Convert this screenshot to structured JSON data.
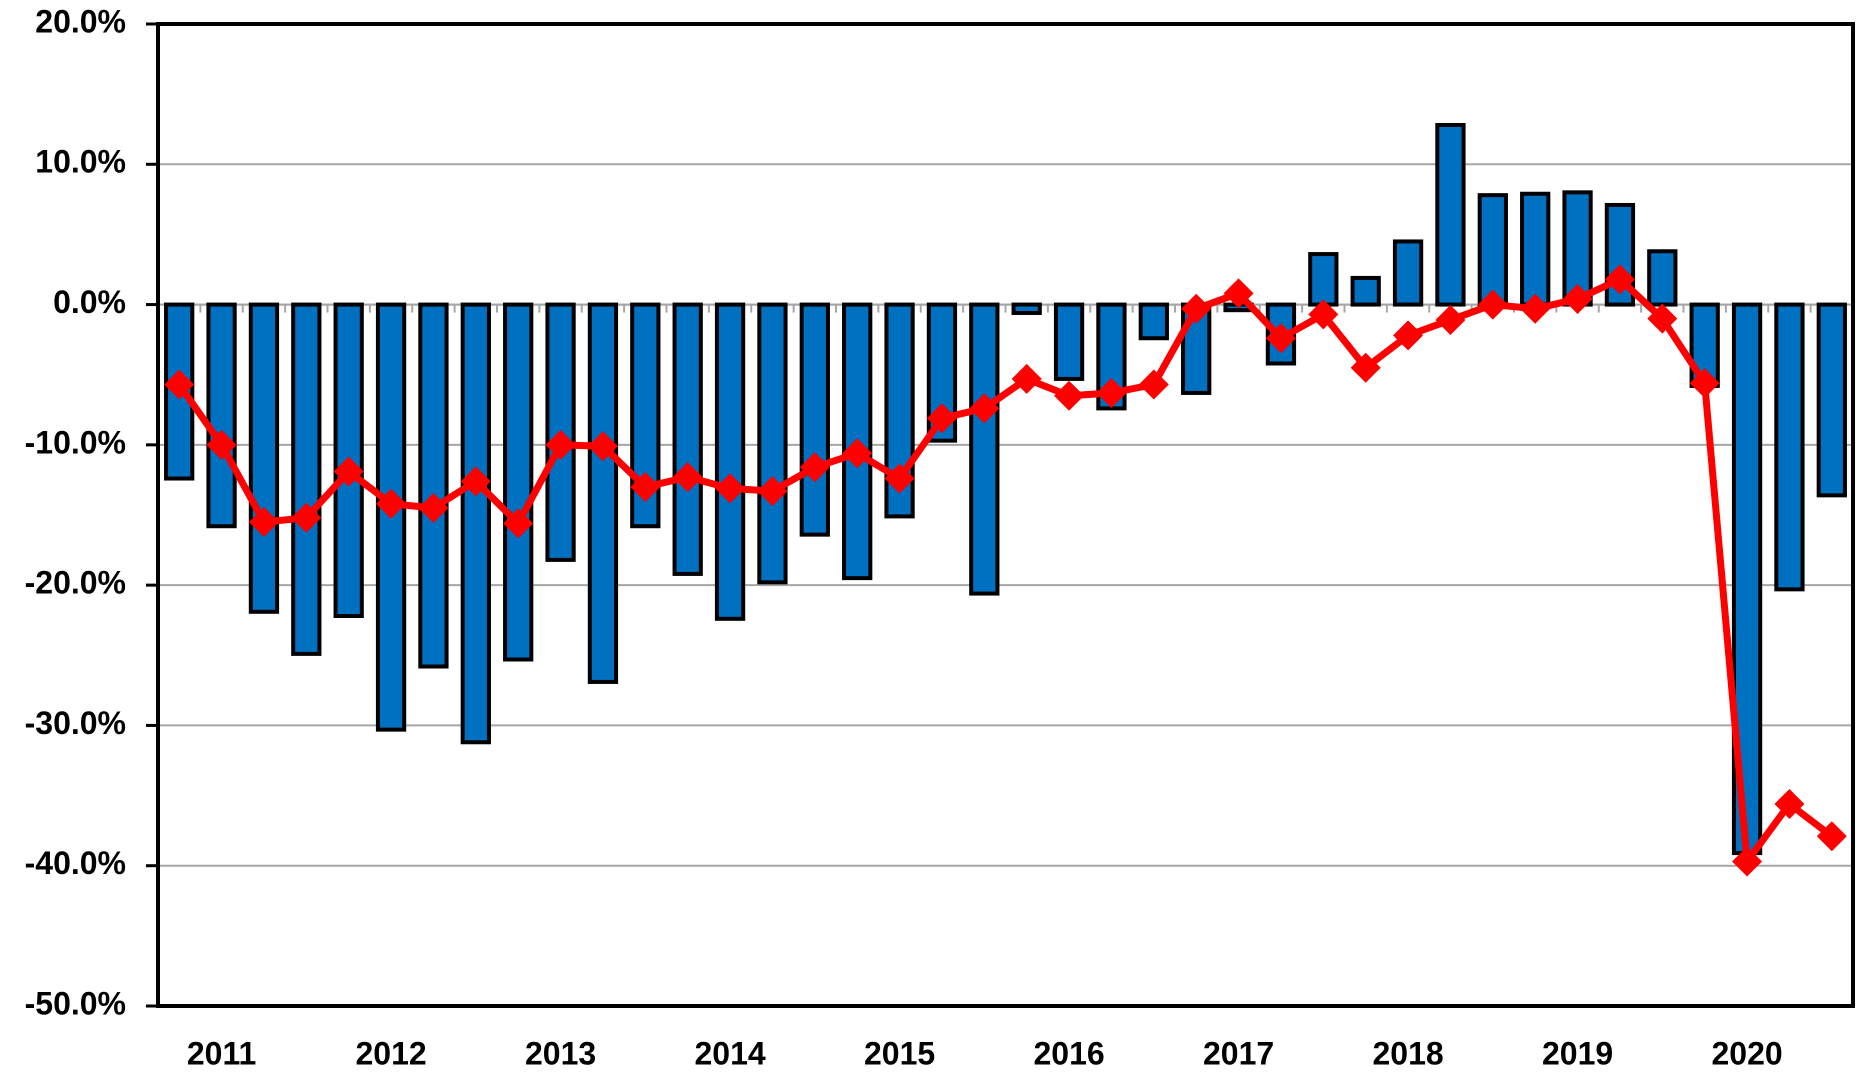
{
  "chart_data": {
    "type": "bar",
    "categories": [
      null,
      "2011",
      null,
      null,
      null,
      "2012",
      null,
      null,
      null,
      "2013",
      null,
      null,
      null,
      "2014",
      null,
      null,
      null,
      "2015",
      null,
      null,
      null,
      "2016",
      null,
      null,
      null,
      "2017",
      null,
      null,
      null,
      "2018",
      null,
      null,
      null,
      "2019",
      null,
      null,
      null,
      "2020",
      null,
      null
    ],
    "series": [
      {
        "type": "bar",
        "color": "#0070c0",
        "values": [
          -12.4,
          -15.8,
          -21.9,
          -24.9,
          -22.2,
          -30.3,
          -25.8,
          -31.2,
          -25.3,
          -18.2,
          -26.9,
          -15.8,
          -19.2,
          -22.4,
          -19.8,
          -16.4,
          -19.5,
          -15.1,
          -9.7,
          -20.6,
          -0.6,
          -5.3,
          -7.4,
          -2.4,
          -6.3,
          -0.4,
          -4.2,
          3.6,
          1.9,
          4.5,
          12.8,
          7.8,
          7.9,
          8.0,
          7.1,
          3.8,
          -5.8,
          -39.1,
          -20.3,
          -13.6
        ]
      },
      {
        "type": "line",
        "color": "#ff0000",
        "values": [
          -5.7,
          -10.0,
          -15.5,
          -15.2,
          -11.9,
          -14.2,
          -14.5,
          -12.6,
          -15.6,
          -10.0,
          -10.1,
          -13.0,
          -12.3,
          -13.1,
          -13.3,
          -11.6,
          -10.6,
          -12.4,
          -8.1,
          -7.4,
          -5.3,
          -6.5,
          -6.3,
          -5.7,
          -0.3,
          0.8,
          -2.4,
          -0.7,
          -4.5,
          -2.2,
          -1.1,
          0.0,
          -0.3,
          0.4,
          1.8,
          -1.0,
          -5.6,
          -39.7,
          -35.6,
          -37.9
        ]
      }
    ],
    "ylim": [
      -50,
      20
    ],
    "yticks": [
      {
        "value": -50,
        "label": "-50.0%"
      },
      {
        "value": -40,
        "label": "-40.0%"
      },
      {
        "value": -30,
        "label": "-30.0%"
      },
      {
        "value": -20,
        "label": "-20.0%"
      },
      {
        "value": -10,
        "label": "-10.0%"
      },
      {
        "value": 0,
        "label": "0.0%"
      },
      {
        "value": 10,
        "label": "10.0%"
      },
      {
        "value": 20,
        "label": "20.0%"
      }
    ],
    "grid": true
  }
}
